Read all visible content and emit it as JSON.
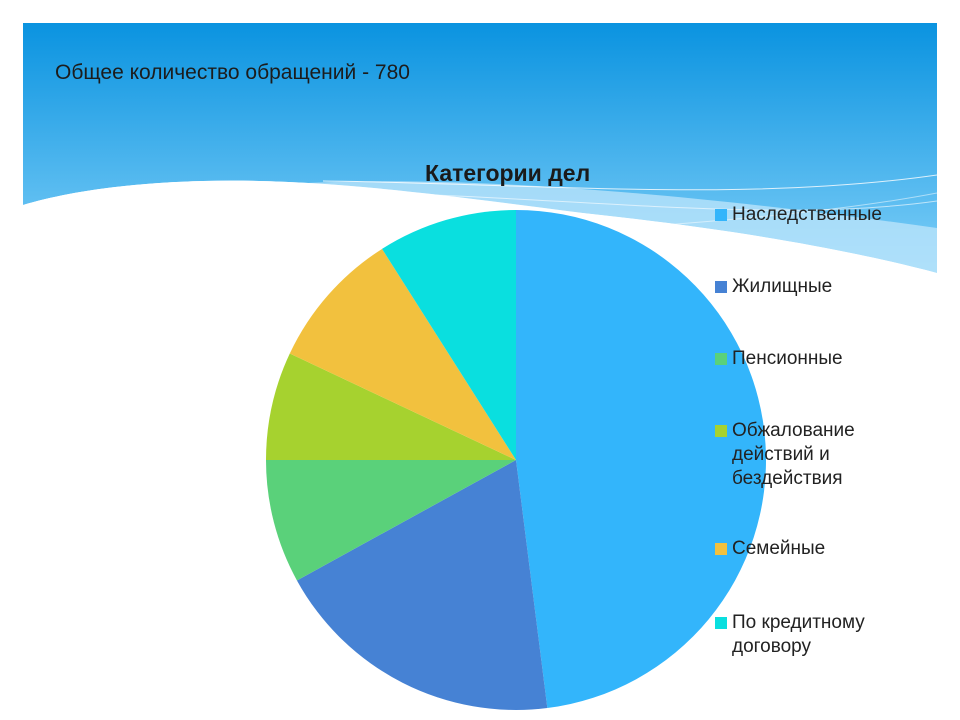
{
  "slide": {
    "heading": "Общее количество обращений - 780"
  },
  "theme": {
    "header_top": "#0a93e0",
    "header_bottom": "#7fcff8",
    "wave": "#bfe6fb"
  },
  "chart_data": {
    "type": "pie",
    "title": "Категории дел",
    "legend_position": "right",
    "categories": [
      "Наследственные",
      "Жилищные",
      "Пенсионные",
      "Обжалование действий и бездействия",
      "Семейные",
      "По кредитному договору"
    ],
    "values": [
      48,
      19,
      8,
      7,
      9,
      9
    ],
    "colors": [
      "#33b5fb",
      "#4682d4",
      "#5ad17a",
      "#a6d22f",
      "#f2c13e",
      "#0adfdf"
    ]
  }
}
